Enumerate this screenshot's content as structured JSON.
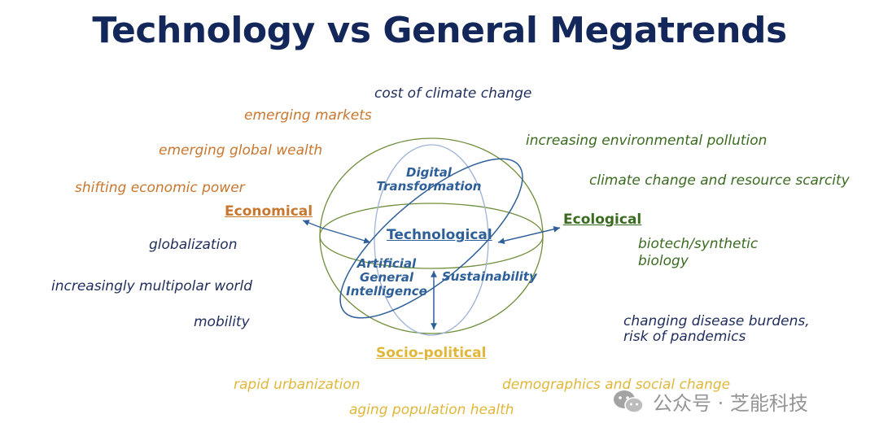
{
  "title": "Technology vs General Megatrends",
  "categories": {
    "economical": "Economical",
    "ecological": "Ecological",
    "socio_political": "Socio-political",
    "technological": "Technological"
  },
  "inner_labels": {
    "digital_transformation": [
      "Digital",
      "Transformation"
    ],
    "agi": [
      "Artificial",
      "General",
      "Intelligence"
    ],
    "sustainability": "Sustainability"
  },
  "economical_trends": [
    "emerging markets",
    "emerging global wealth",
    "shifting economic power"
  ],
  "global_trends": [
    "cost of climate change",
    "globalization",
    "increasingly multipolar world",
    "mobility",
    "changing disease burdens,",
    "risk of pandemics"
  ],
  "ecological_trends": [
    "increasing environmental pollution",
    "climate change and resource scarcity",
    "biotech/synthetic",
    "biology"
  ],
  "socio_trends": [
    "rapid urbanization",
    "demographics and social change",
    "aging population health"
  ],
  "watermark": "公众号 · 芝能科技",
  "colors": {
    "title": "#13275a",
    "navy": "#1f2d5c",
    "economical": "#c8772e",
    "ecological": "#3a6b20",
    "socio_political": "#e0b73a",
    "technological": "#2e5f99",
    "sphere": "#6f8f3c",
    "meridian": "#9fb3d8"
  },
  "icons": [
    "wechat-icon"
  ]
}
